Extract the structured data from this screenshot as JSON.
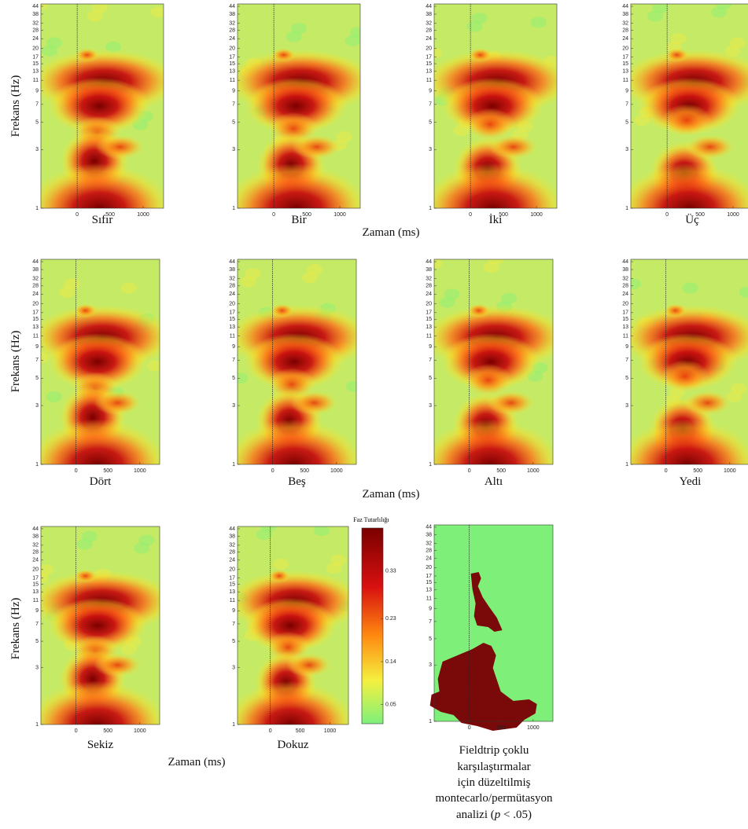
{
  "chart_data": {
    "type": "heatmap_grid",
    "y_label": "Frekans (Hz)",
    "x_label": "Zaman (ms)",
    "y_scale": "log",
    "xlim": [
      -550,
      1310
    ],
    "ylim": [
      1,
      46
    ],
    "xticks": [
      0,
      500,
      1000
    ],
    "yticks": [
      1,
      3,
      5,
      7,
      9,
      11,
      13,
      15,
      17,
      20,
      24,
      28,
      32,
      38,
      44
    ],
    "panels": [
      {
        "title": "Sıfır"
      },
      {
        "title": "Bir"
      },
      {
        "title": "İki"
      },
      {
        "title": "Üç"
      },
      {
        "title": "Dört"
      },
      {
        "title": "Beş"
      },
      {
        "title": "Altı"
      },
      {
        "title": "Yedi"
      },
      {
        "title": "Sekiz"
      },
      {
        "title": "Dokuz"
      }
    ],
    "colorbar": {
      "label": "Faz Tutarlılığı",
      "lim": [
        0.01,
        0.42
      ],
      "ticks": [
        0.05,
        0.14,
        0.23,
        0.33
      ]
    },
    "significance": {
      "caption_lines": [
        "Fieldtrip çoklu",
        "karşılaştırmalar",
        "için düzeltilmiş",
        "montecarlo/permütasyon"
      ],
      "caption_last": [
        "analizi (",
        "p",
        " < .05)"
      ]
    }
  }
}
